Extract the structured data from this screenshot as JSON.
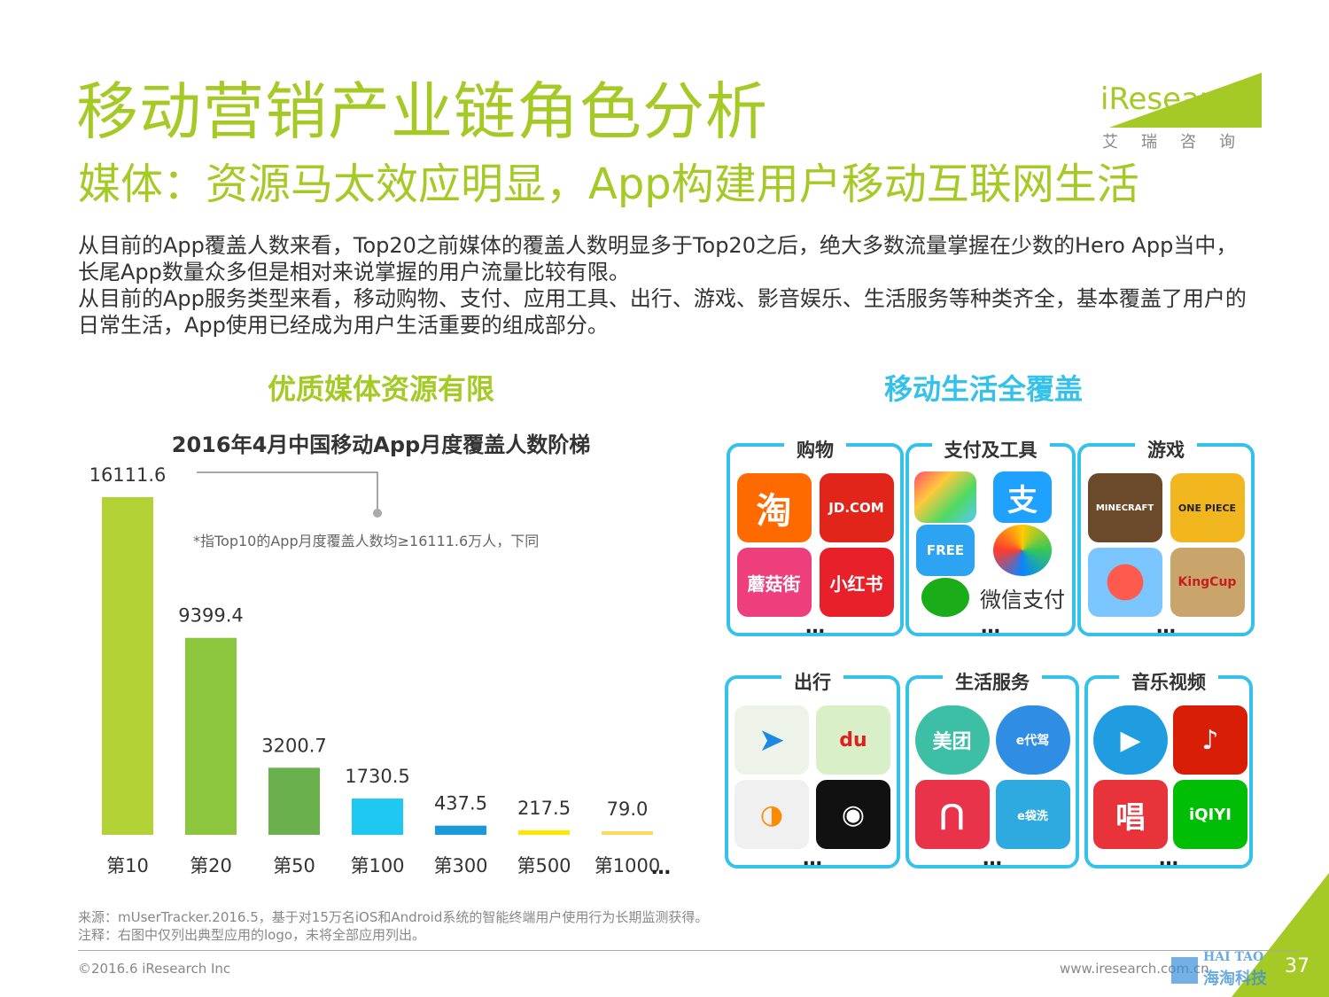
{
  "header": {
    "title": "移动营销产业链角色分析",
    "subtitle": "媒体：资源马太效应明显，App构建用户移动互联网生活",
    "logo_text": "iResearch",
    "logo_cn": "艾瑞咨询"
  },
  "body": {
    "paragraph1": "从目前的App覆盖人数来看，Top20之前媒体的覆盖人数明显多于Top20之后，绝大多数流量掌握在少数的Hero App当中，长尾App数量众多但是相对来说掌握的用户流量比较有限。",
    "paragraph2": "从目前的App服务类型来看，移动购物、支付、应用工具、出行、游戏、影音娱乐、生活服务等种类齐全，基本覆盖了用户的日常生活，App使用已经成为用户生活重要的组成部分。"
  },
  "left_section": {
    "title": "优质媒体资源有限",
    "footnote": "*指Top10的App月度覆盖人数均≥16111.6万人，下同"
  },
  "right_section": {
    "title": "移动生活全覆盖",
    "more_label": "…",
    "groups": [
      {
        "label": "购物",
        "apps": [
          "淘",
          "JD.COM",
          "蘑菇街",
          "小红书"
        ]
      },
      {
        "label": "支付及工具",
        "apps": [
          "",
          "支",
          "FREE",
          "",
          "",
          "微信支付"
        ]
      },
      {
        "label": "游戏",
        "apps": [
          "MINECRAFT",
          "ONE PIECE",
          "",
          "KingCup"
        ]
      },
      {
        "label": "出行",
        "apps": [
          "",
          "du",
          "",
          ""
        ]
      },
      {
        "label": "生活服务",
        "apps": [
          "美团",
          "e代驾",
          "",
          "e袋洗"
        ]
      },
      {
        "label": "音乐视频",
        "apps": [
          "",
          "",
          "唱",
          "iQIYI"
        ]
      }
    ]
  },
  "chart_data": {
    "type": "bar",
    "title": "2016年4月中国移动App月度覆盖人数阶梯",
    "categories": [
      "第10",
      "第20",
      "第50",
      "第100",
      "第300",
      "第500",
      "第1000"
    ],
    "values": [
      16111.6,
      9399.4,
      3200.7,
      1730.5,
      437.5,
      217.5,
      79.0
    ],
    "value_labels": [
      "16111.6",
      "9399.4",
      "3200.7",
      "1730.5",
      "437.5",
      "217.5",
      "79.0"
    ],
    "colors": [
      "#b2d235",
      "#8cc63f",
      "#6ab04c",
      "#1ec8f0",
      "#1a9ad6",
      "#ffe600",
      "#ffd95a"
    ],
    "trailing_label": "…",
    "ylim": [
      0,
      16111.6
    ],
    "grid": false,
    "legend": "none",
    "xlabel": "",
    "ylabel": ""
  },
  "footer": {
    "source": "来源：mUserTracker.2016.5，基于对15万名iOS和Android系统的智能终端用户使用行为长期监测获得。",
    "note": "注释：右图中仅列出典型应用的logo，未将全部应用列出。",
    "copyright": "©2016.6 iResearch Inc",
    "website": "www.iresearch.com.cn",
    "page_number": "37",
    "watermark_en": "HAI TAO",
    "watermark_cn": "海淘科技"
  },
  "colors": {
    "accent_green": "#a5c925",
    "accent_blue": "#35c2ea"
  }
}
